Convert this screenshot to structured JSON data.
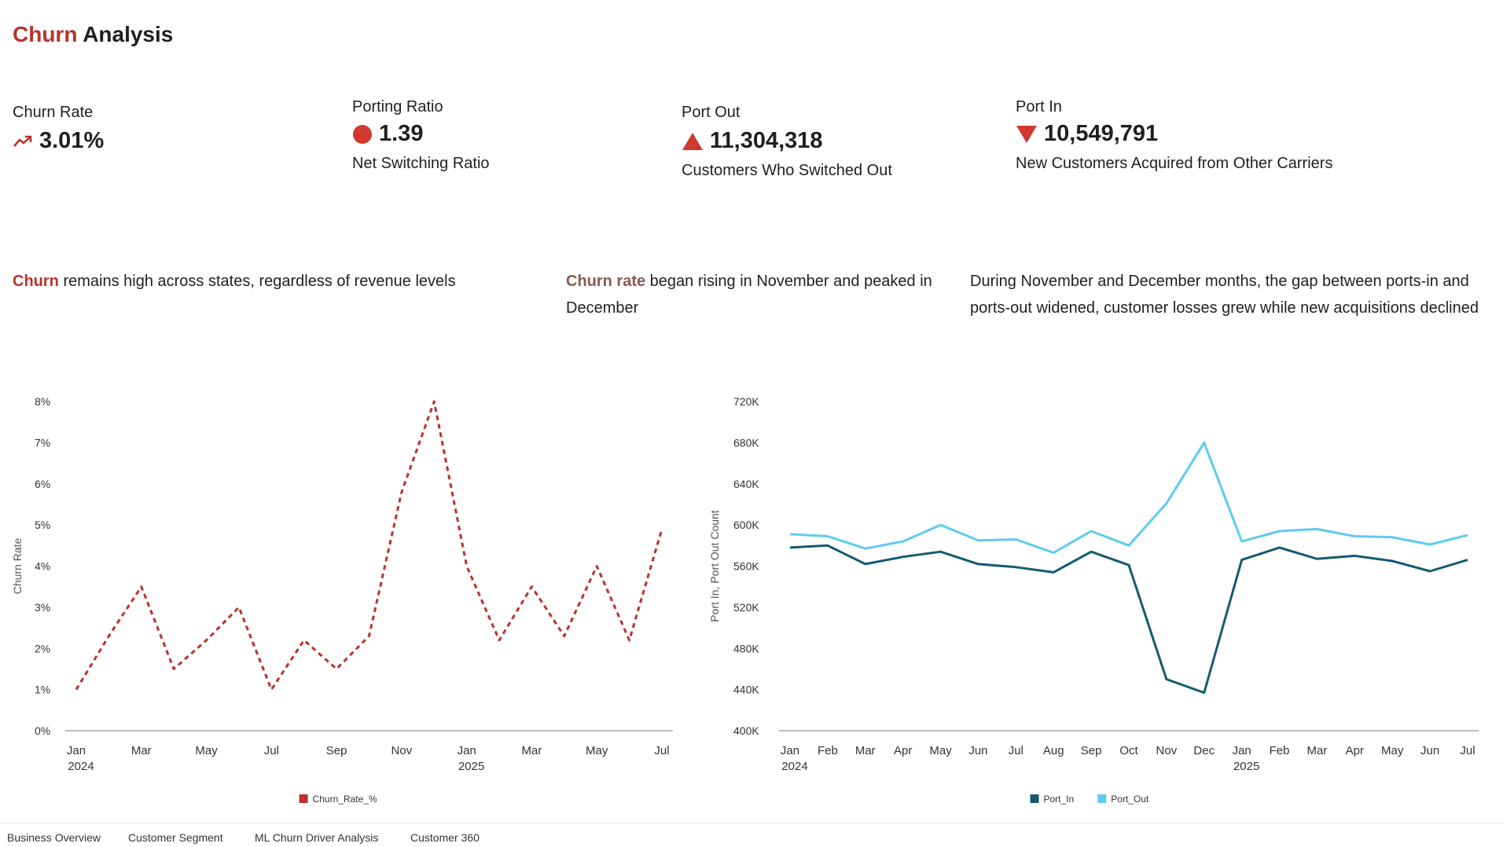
{
  "title": {
    "accent": "Churn",
    "rest": "Analysis"
  },
  "colors": {
    "accent": "#b8332c",
    "port_in": "#155a73",
    "port_out": "#5ecbef",
    "axis": "#555555"
  },
  "kpis": {
    "churn_rate": {
      "label": "Churn Rate",
      "value": "3.01%",
      "icon": "trend-up-icon"
    },
    "porting_ratio": {
      "label": "Porting Ratio",
      "value": "1.39",
      "sub": "Net Switching Ratio",
      "icon": "red-dot-icon"
    },
    "port_out": {
      "label": "Port Out",
      "value": "11,304,318",
      "sub": "Customers Who Switched Out",
      "icon": "triangle-up-icon"
    },
    "port_in": {
      "label": "Port In",
      "value": "10,549,791",
      "sub": "New Customers Acquired from Other Carriers",
      "icon": "triangle-down-icon"
    }
  },
  "captions": {
    "c1": {
      "accent": "Churn",
      "rest": " remains high across states, regardless of revenue levels"
    },
    "c2": {
      "accent": "Churn rate",
      "rest": " began rising in November and peaked in December"
    },
    "c3": {
      "text": "During November and December months, the gap between ports-in and ports-out widened, customer losses grew while new acquisitions declined"
    }
  },
  "chart_data": [
    {
      "type": "line",
      "x": [
        "2024-01",
        "2024-02",
        "2024-03",
        "2024-04",
        "2024-05",
        "2024-06",
        "2024-07",
        "2024-08",
        "2024-09",
        "2024-10",
        "2024-11",
        "2024-12",
        "2025-01",
        "2025-02",
        "2025-03",
        "2025-04",
        "2025-05",
        "2025-06",
        "2025-07"
      ],
      "x_tick_labels": [
        {
          "i": 0,
          "month": "Jan",
          "year": "2024"
        },
        {
          "i": 2,
          "month": "Mar",
          "year": ""
        },
        {
          "i": 4,
          "month": "May",
          "year": ""
        },
        {
          "i": 6,
          "month": "Jul",
          "year": ""
        },
        {
          "i": 8,
          "month": "Sep",
          "year": ""
        },
        {
          "i": 10,
          "month": "Nov",
          "year": ""
        },
        {
          "i": 12,
          "month": "Jan",
          "year": "2025"
        },
        {
          "i": 14,
          "month": "Mar",
          "year": ""
        },
        {
          "i": 16,
          "month": "May",
          "year": ""
        },
        {
          "i": 18,
          "month": "Jul",
          "year": ""
        }
      ],
      "series": [
        {
          "name": "Churn_Rate_%",
          "values": [
            1.0,
            2.3,
            3.5,
            1.5,
            2.2,
            3.0,
            1.0,
            2.2,
            1.5,
            2.3,
            5.8,
            8.0,
            4.0,
            2.2,
            3.5,
            2.3,
            4.0,
            2.2,
            4.9
          ],
          "color": "#b8332c",
          "style": "dashed"
        }
      ],
      "ylabel": "Churn Rate",
      "y_ticks": [
        "0%",
        "1%",
        "2%",
        "3%",
        "4%",
        "5%",
        "6%",
        "7%",
        "8%"
      ],
      "ylim": [
        0,
        8
      ],
      "legend": "bottom-center",
      "grid": false
    },
    {
      "type": "line",
      "x": [
        "2024-01",
        "2024-02",
        "2024-03",
        "2024-04",
        "2024-05",
        "2024-06",
        "2024-07",
        "2024-08",
        "2024-09",
        "2024-10",
        "2024-11",
        "2024-12",
        "2025-01",
        "2025-02",
        "2025-03",
        "2025-04",
        "2025-05",
        "2025-06",
        "2025-07"
      ],
      "x_tick_labels": [
        {
          "i": 0,
          "month": "Jan",
          "year": "2024"
        },
        {
          "i": 1,
          "month": "Feb",
          "year": ""
        },
        {
          "i": 2,
          "month": "Mar",
          "year": ""
        },
        {
          "i": 3,
          "month": "Apr",
          "year": ""
        },
        {
          "i": 4,
          "month": "May",
          "year": ""
        },
        {
          "i": 5,
          "month": "Jun",
          "year": ""
        },
        {
          "i": 6,
          "month": "Jul",
          "year": ""
        },
        {
          "i": 7,
          "month": "Aug",
          "year": ""
        },
        {
          "i": 8,
          "month": "Sep",
          "year": ""
        },
        {
          "i": 9,
          "month": "Oct",
          "year": ""
        },
        {
          "i": 10,
          "month": "Nov",
          "year": ""
        },
        {
          "i": 11,
          "month": "Dec",
          "year": ""
        },
        {
          "i": 12,
          "month": "Jan",
          "year": "2025"
        },
        {
          "i": 13,
          "month": "Feb",
          "year": ""
        },
        {
          "i": 14,
          "month": "Mar",
          "year": ""
        },
        {
          "i": 15,
          "month": "Apr",
          "year": ""
        },
        {
          "i": 16,
          "month": "May",
          "year": ""
        },
        {
          "i": 17,
          "month": "Jun",
          "year": ""
        },
        {
          "i": 18,
          "month": "Jul",
          "year": ""
        }
      ],
      "series": [
        {
          "name": "Port_In",
          "values": [
            578000,
            580000,
            562000,
            569000,
            574000,
            562000,
            559000,
            554000,
            574000,
            561000,
            450000,
            437000,
            566000,
            578000,
            567000,
            570000,
            565000,
            555000,
            566000
          ],
          "color": "#155a73",
          "style": "solid"
        },
        {
          "name": "Port_Out",
          "values": [
            591000,
            589000,
            577000,
            584000,
            600000,
            585000,
            586000,
            573000,
            594000,
            580000,
            621000,
            680000,
            584000,
            594000,
            596000,
            589000,
            588000,
            581000,
            590000
          ],
          "color": "#5ecbef",
          "style": "solid"
        }
      ],
      "ylabel": "Port In, Port Out Count",
      "y_ticks": [
        "400K",
        "440K",
        "480K",
        "520K",
        "560K",
        "600K",
        "640K",
        "680K",
        "720K"
      ],
      "ylim": [
        400000,
        720000
      ],
      "legend": "bottom-center",
      "grid": false
    }
  ],
  "tabs": [
    "Business Overview",
    "Customer Segment",
    "ML Churn Driver Analysis",
    "Customer 360"
  ]
}
